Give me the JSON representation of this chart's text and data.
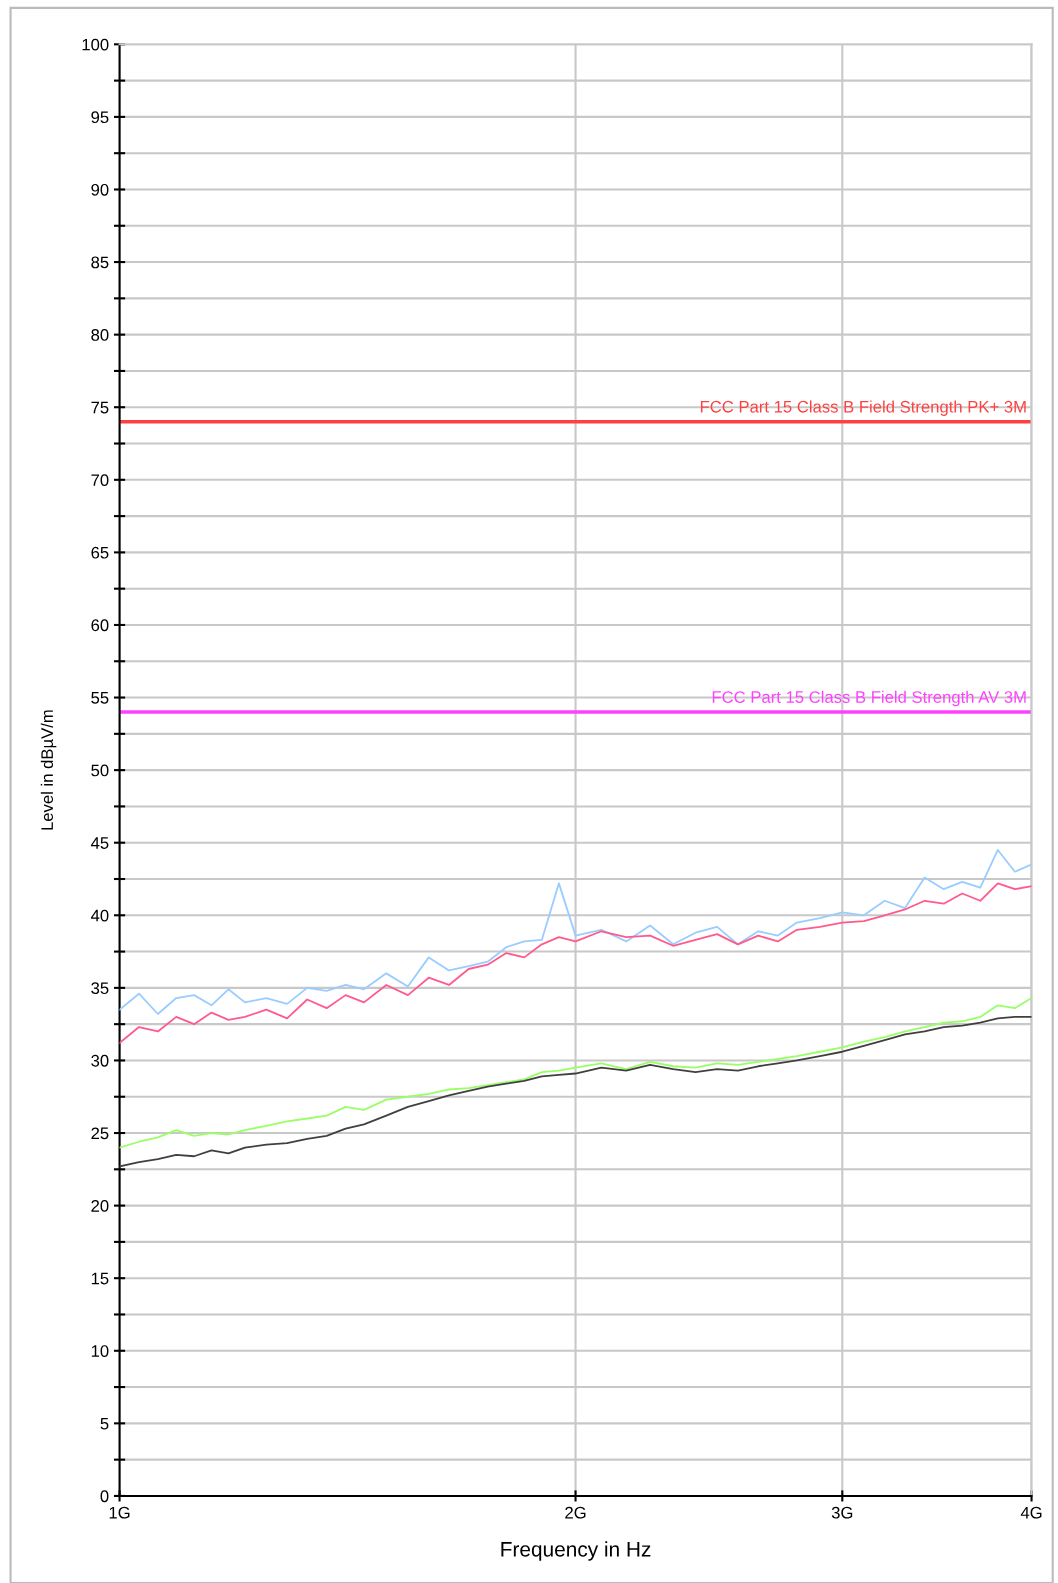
{
  "chart_data": {
    "type": "line",
    "xlabel": "Frequency in Hz",
    "ylabel": "Level in dBµV/m",
    "log": "x",
    "x": [
      1.0,
      1.03,
      1.06,
      1.09,
      1.12,
      1.15,
      1.18,
      1.21,
      1.25,
      1.29,
      1.33,
      1.37,
      1.41,
      1.45,
      1.5,
      1.55,
      1.6,
      1.65,
      1.7,
      1.75,
      1.8,
      1.85,
      1.9,
      1.95,
      2.0,
      2.08,
      2.16,
      2.24,
      2.32,
      2.4,
      2.48,
      2.56,
      2.64,
      2.72,
      2.8,
      2.9,
      3.0,
      3.1,
      3.2,
      3.3,
      3.4,
      3.5,
      3.6,
      3.7,
      3.8,
      3.9,
      4.0
    ],
    "series": [
      {
        "color": "#99ccff",
        "values": [
          33.5,
          34.6,
          33.2,
          34.3,
          34.5,
          33.8,
          34.9,
          34.0,
          34.3,
          33.9,
          35.0,
          34.8,
          35.2,
          34.9,
          36.0,
          35.1,
          37.1,
          36.2,
          36.5,
          36.8,
          37.8,
          38.2,
          38.3,
          42.2,
          38.6,
          39.0,
          38.2,
          39.3,
          38.0,
          38.8,
          39.2,
          38.0,
          38.9,
          38.6,
          39.5,
          39.8,
          40.2,
          40.0,
          41.0,
          40.5,
          42.6,
          41.8,
          42.3,
          41.9,
          44.5,
          43.0,
          43.5
        ]
      },
      {
        "color": "#ff5a8c",
        "values": [
          31.2,
          32.3,
          32.0,
          33.0,
          32.5,
          33.3,
          32.8,
          33.0,
          33.5,
          32.9,
          34.2,
          33.6,
          34.5,
          34.0,
          35.2,
          34.5,
          35.7,
          35.2,
          36.3,
          36.6,
          37.4,
          37.1,
          38.0,
          38.5,
          38.2,
          38.9,
          38.5,
          38.6,
          37.9,
          38.3,
          38.7,
          38.0,
          38.6,
          38.2,
          39.0,
          39.2,
          39.5,
          39.6,
          40.0,
          40.4,
          41.0,
          40.8,
          41.5,
          41.0,
          42.2,
          41.8,
          42.0
        ]
      },
      {
        "color": "#99ff66",
        "values": [
          24.0,
          24.4,
          24.7,
          25.2,
          24.8,
          25.0,
          24.9,
          25.2,
          25.5,
          25.8,
          26.0,
          26.2,
          26.8,
          26.6,
          27.3,
          27.5,
          27.7,
          28.0,
          28.1,
          28.3,
          28.5,
          28.7,
          29.2,
          29.3,
          29.5,
          29.8,
          29.4,
          29.9,
          29.6,
          29.5,
          29.8,
          29.7,
          29.9,
          30.1,
          30.3,
          30.6,
          30.9,
          31.3,
          31.6,
          32.0,
          32.3,
          32.6,
          32.7,
          33.0,
          33.8,
          33.6,
          34.3
        ]
      },
      {
        "color": "#404040",
        "values": [
          22.7,
          23.0,
          23.2,
          23.5,
          23.4,
          23.8,
          23.6,
          24.0,
          24.2,
          24.3,
          24.6,
          24.8,
          25.3,
          25.6,
          26.2,
          26.8,
          27.2,
          27.6,
          27.9,
          28.2,
          28.4,
          28.6,
          28.9,
          29.0,
          29.1,
          29.5,
          29.3,
          29.7,
          29.4,
          29.2,
          29.4,
          29.3,
          29.6,
          29.8,
          30.0,
          30.3,
          30.6,
          31.0,
          31.4,
          31.8,
          32.0,
          32.3,
          32.4,
          32.6,
          32.9,
          33.0,
          33.0
        ]
      }
    ],
    "ref_lines": [
      {
        "axis": "y",
        "value": 74,
        "label": "FCC Part 15 Class B Field Strength PK+ 3M",
        "color": "#ff4040"
      },
      {
        "axis": "y",
        "value": 54,
        "label": "FCC Part 15 Class B Field Strength AV 3M",
        "color": "#ff40ff"
      }
    ],
    "xlim": [
      1,
      4
    ],
    "xticks": [
      {
        "value": 1,
        "label": "1G"
      },
      {
        "value": 2,
        "label": "2G"
      },
      {
        "value": 3,
        "label": "3G"
      },
      {
        "value": 4,
        "label": "4G"
      }
    ],
    "ylim": [
      0,
      100
    ],
    "yticks": [
      0,
      {
        "value": 2.5,
        "label": null
      },
      5,
      {
        "value": 7.5,
        "label": null
      },
      10,
      {
        "value": 12.5,
        "label": null
      },
      15,
      {
        "value": 17.5,
        "label": null
      },
      20,
      {
        "value": 22.5,
        "label": null
      },
      25,
      {
        "value": 27.5,
        "label": null
      },
      30,
      {
        "value": 32.5,
        "label": null
      },
      35,
      {
        "value": 37.5,
        "label": null
      },
      40,
      {
        "value": 42.5,
        "label": null
      },
      45,
      {
        "value": 47.5,
        "label": null
      },
      50,
      {
        "value": 52.5,
        "label": null
      },
      55,
      {
        "value": 57.5,
        "label": null
      },
      60,
      {
        "value": 62.5,
        "label": null
      },
      65,
      {
        "value": 67.5,
        "label": null
      },
      70,
      {
        "value": 72.5,
        "label": null
      },
      75,
      {
        "value": 77.5,
        "label": null
      },
      80,
      {
        "value": 82.5,
        "label": null
      },
      85,
      {
        "value": 87.5,
        "label": null
      },
      90,
      {
        "value": 92.5,
        "label": null
      },
      95,
      {
        "value": 97.5,
        "label": null
      },
      100
    ],
    "grid": true,
    "marker": "none",
    "line_style": "solid"
  }
}
